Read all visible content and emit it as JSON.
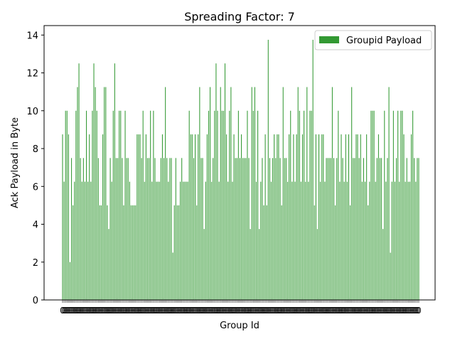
{
  "chart_data": {
    "type": "bar",
    "title": "Spreading Factor: 7",
    "xlabel": "Group Id",
    "ylabel": "Ack Payload in Byte",
    "ylim": [
      0,
      14.5
    ],
    "yticks": [
      0,
      2,
      4,
      6,
      8,
      10,
      12,
      14
    ],
    "grid": false,
    "legend_position": "top-right",
    "series": [
      {
        "name": "Groupid Payload",
        "color": "#339933",
        "values": [
          8.75,
          6.25,
          10.0,
          10.0,
          8.75,
          2.0,
          7.5,
          5.0,
          6.25,
          10.0,
          11.25,
          12.5,
          7.5,
          6.25,
          7.5,
          6.25,
          10.0,
          6.25,
          8.75,
          6.25,
          10.0,
          12.5,
          11.25,
          10.0,
          7.5,
          5.0,
          5.0,
          8.75,
          11.25,
          11.25,
          5.0,
          3.75,
          7.5,
          6.25,
          10.0,
          12.5,
          7.5,
          7.5,
          10.0,
          10.0,
          7.5,
          5.0,
          10.0,
          7.5,
          7.5,
          6.25,
          5.0,
          5.0,
          5.0,
          5.0,
          8.75,
          8.75,
          8.75,
          7.5,
          10.0,
          6.25,
          8.75,
          7.5,
          7.5,
          10.0,
          6.25,
          10.0,
          7.5,
          6.25,
          6.25,
          6.25,
          7.5,
          8.75,
          7.5,
          11.25,
          7.5,
          6.25,
          7.5,
          7.5,
          2.5,
          5.0,
          7.5,
          5.0,
          5.0,
          6.25,
          7.5,
          6.25,
          6.25,
          6.25,
          6.25,
          10.0,
          8.75,
          8.75,
          7.5,
          8.75,
          5.0,
          8.75,
          11.25,
          7.5,
          7.5,
          3.75,
          6.25,
          8.75,
          10.0,
          11.25,
          6.25,
          7.5,
          10.0,
          12.5,
          10.0,
          6.25,
          11.25,
          10.0,
          10.0,
          12.5,
          8.75,
          6.25,
          10.0,
          11.25,
          6.25,
          8.75,
          7.5,
          7.5,
          10.0,
          7.5,
          8.75,
          7.5,
          7.5,
          7.5,
          10.0,
          7.5,
          3.75,
          11.25,
          10.0,
          11.25,
          6.25,
          10.0,
          3.75,
          6.25,
          7.5,
          5.0,
          8.75,
          5.0,
          13.75,
          7.5,
          6.25,
          7.5,
          8.75,
          7.5,
          8.75,
          8.75,
          7.5,
          5.0,
          11.25,
          7.5,
          7.5,
          6.25,
          8.75,
          10.0,
          6.25,
          8.75,
          6.25,
          8.75,
          11.25,
          10.0,
          6.25,
          8.75,
          10.0,
          6.25,
          11.25,
          6.25,
          10.0,
          10.0,
          13.75,
          5.0,
          8.75,
          3.75,
          8.75,
          6.25,
          8.75,
          8.75,
          6.25,
          7.5,
          7.5,
          7.5,
          7.5,
          11.25,
          7.5,
          5.0,
          7.5,
          10.0,
          6.25,
          8.75,
          7.5,
          6.25,
          8.75,
          6.25,
          8.75,
          5.0,
          11.25,
          7.5,
          7.5,
          8.75,
          8.75,
          7.5,
          8.75,
          6.25,
          7.5,
          6.25,
          8.75,
          5.0,
          6.25,
          10.0,
          10.0,
          10.0,
          6.25,
          7.5,
          8.75,
          7.5,
          7.5,
          3.75,
          10.0,
          6.25,
          7.5,
          11.25,
          2.5,
          6.25,
          10.0,
          6.25,
          7.5,
          10.0,
          6.25,
          10.0,
          10.0,
          8.75,
          6.25,
          7.5,
          6.25,
          6.25,
          8.75,
          10.0,
          7.5,
          6.25,
          7.5,
          7.5
        ]
      }
    ],
    "xtick_label": "0"
  }
}
